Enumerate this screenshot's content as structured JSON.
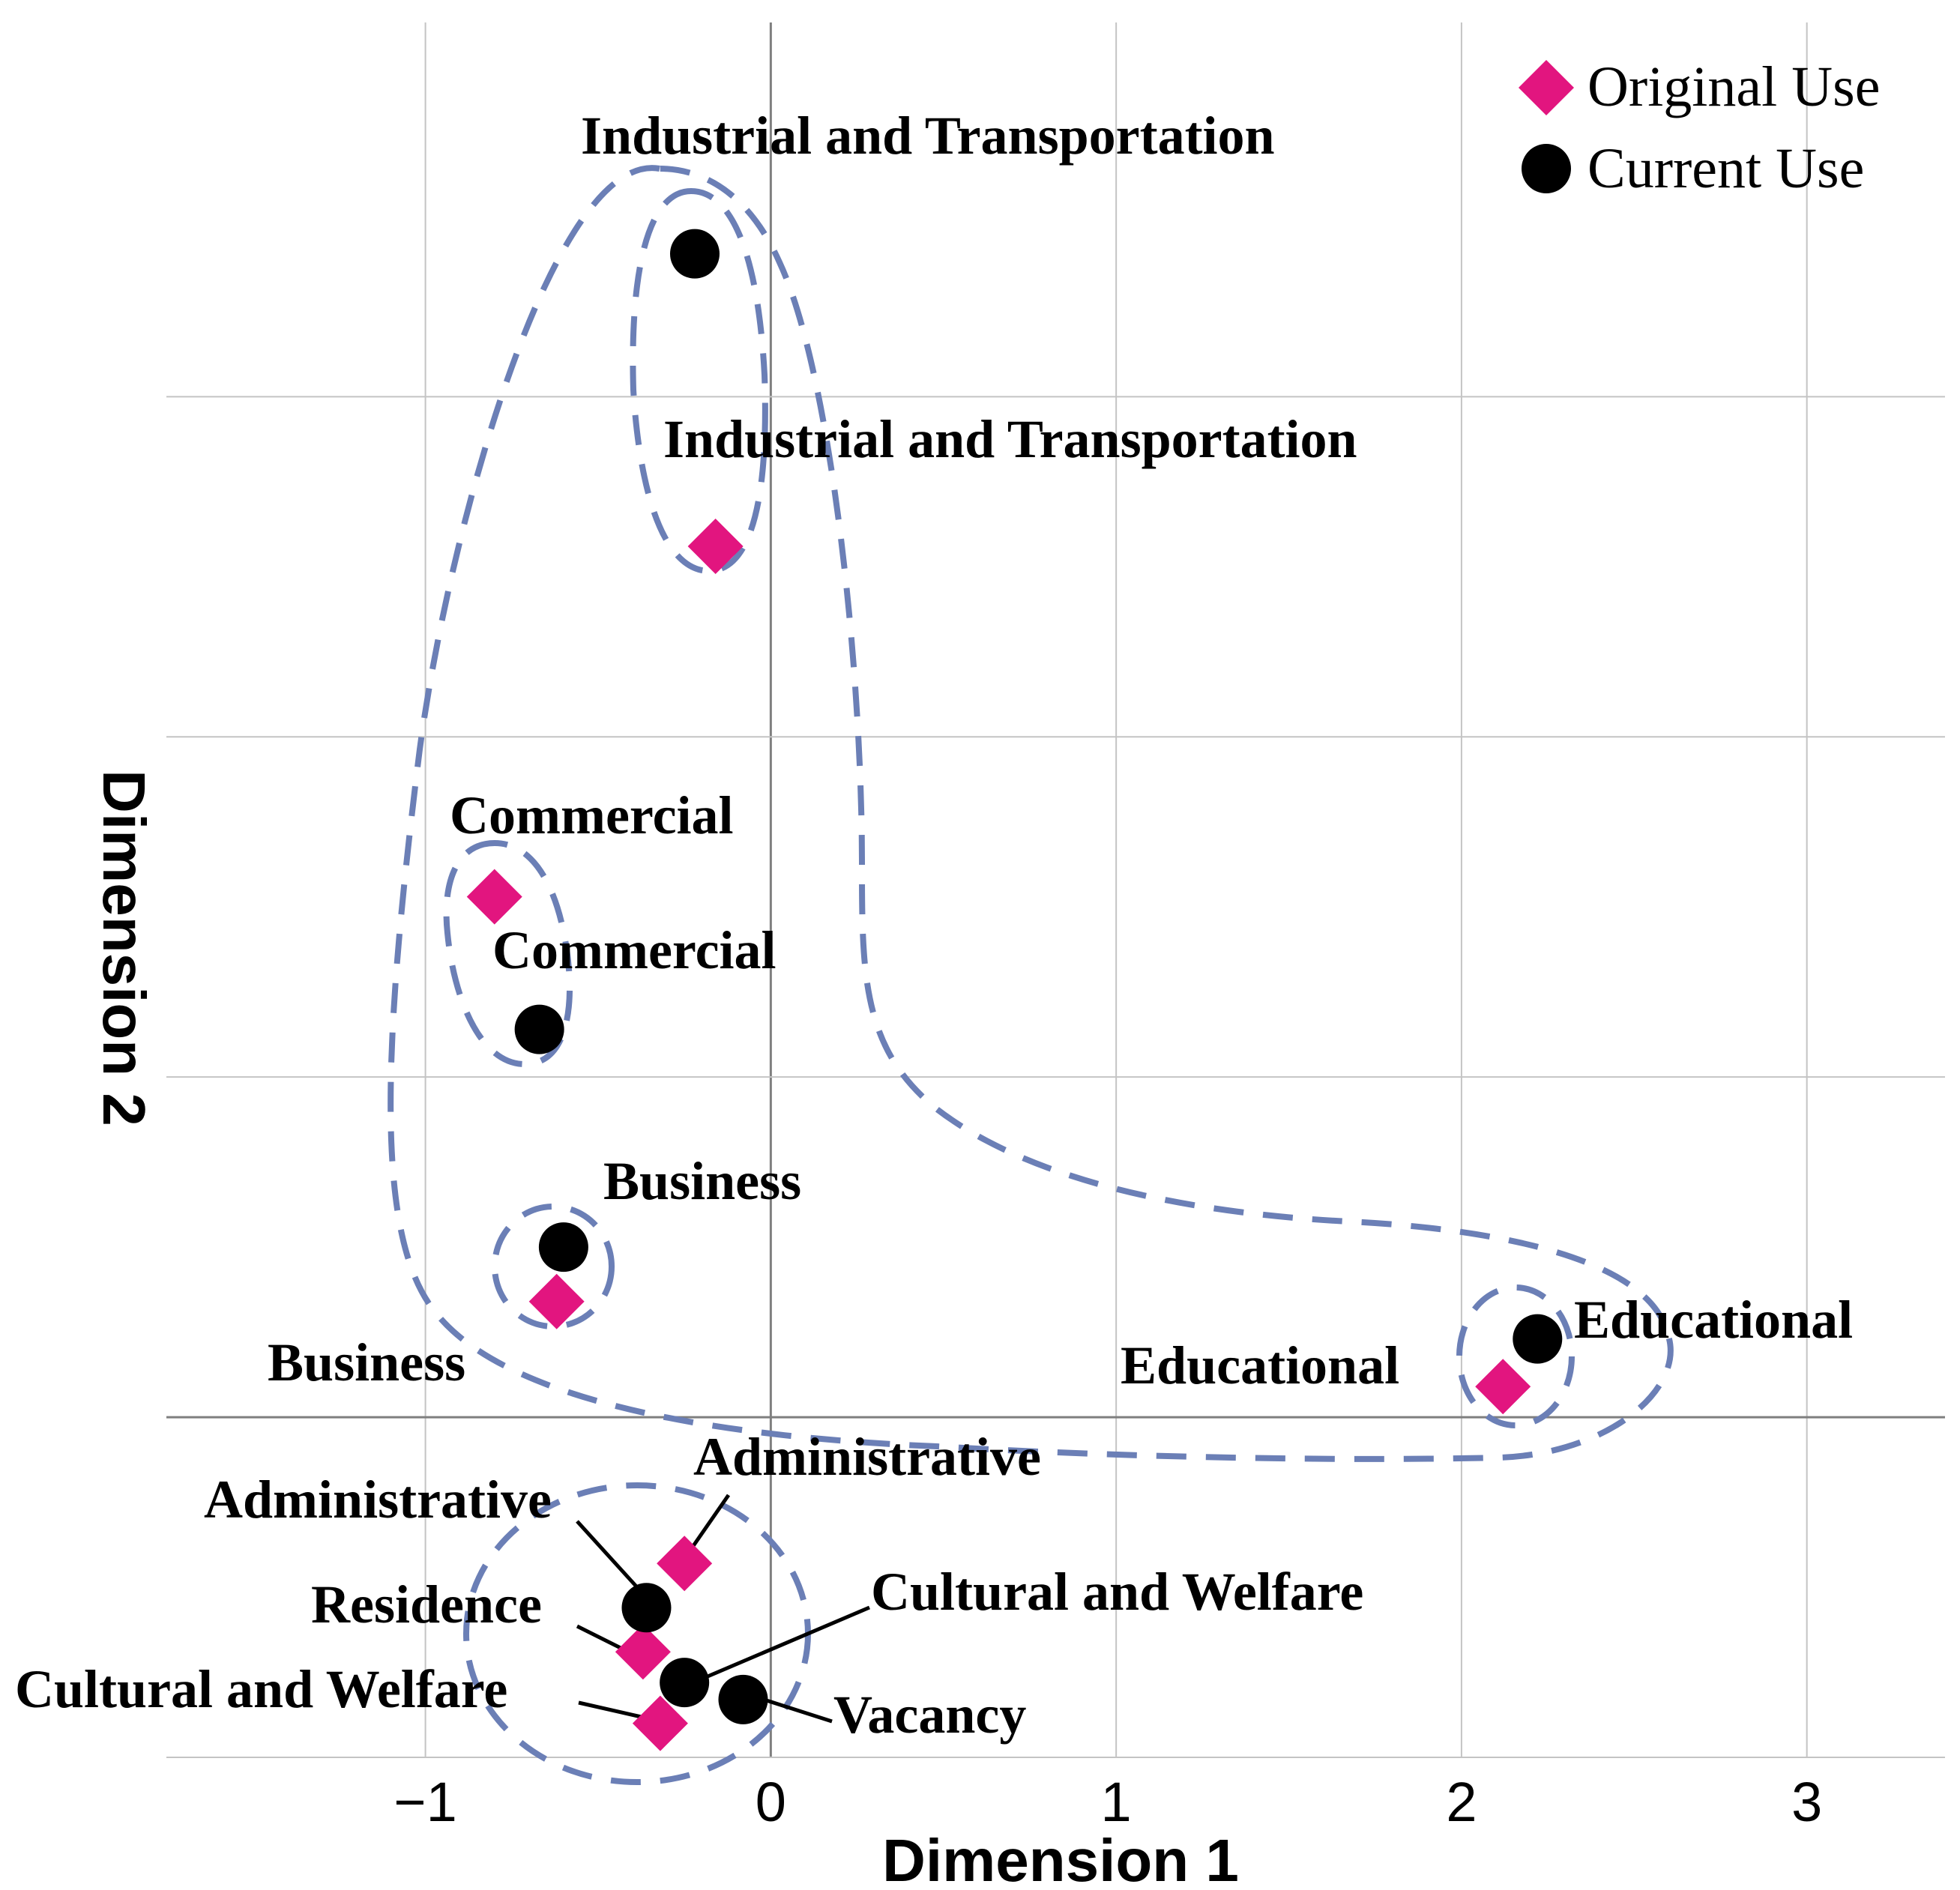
{
  "chart_data": {
    "type": "scatter",
    "title": "",
    "xlabel": "Dimension 1",
    "ylabel": "Dimension 2",
    "xlim": [
      -1.75,
      3.4
    ],
    "ylim": [
      -1.0,
      4.1
    ],
    "xticks": [
      "−1",
      "0",
      "1",
      "2",
      "3"
    ],
    "xtick_values": [
      -1,
      0,
      1,
      2,
      3
    ],
    "grid": true,
    "legend": [
      {
        "label": "Original Use",
        "marker": "diamond",
        "color": "#e2157f"
      },
      {
        "label": "Current Use",
        "marker": "circle",
        "color": "#000000"
      }
    ],
    "series": [
      {
        "name": "Original Use",
        "marker": "diamond",
        "color": "#e2157f",
        "points": [
          {
            "label": "Industrial and Transportation",
            "x": -0.16,
            "y": 2.56
          },
          {
            "label": "Commercial",
            "x": -0.8,
            "y": 1.53
          },
          {
            "label": "Business",
            "x": -0.62,
            "y": 0.34
          },
          {
            "label": "Educational",
            "x": 2.12,
            "y": 0.09
          },
          {
            "label": "Administrative",
            "x": -0.25,
            "y": -0.43
          },
          {
            "label": "Residence",
            "x": -0.37,
            "y": -0.69
          },
          {
            "label": "Cultural and Welfare",
            "x": -0.32,
            "y": -0.9
          }
        ]
      },
      {
        "name": "Current Use",
        "marker": "circle",
        "color": "#000000",
        "points": [
          {
            "label": "Industrial and Transportation",
            "x": -0.22,
            "y": 3.42
          },
          {
            "label": "Commercial",
            "x": -0.67,
            "y": 1.14
          },
          {
            "label": "Business",
            "x": -0.6,
            "y": 0.5
          },
          {
            "label": "Educational",
            "x": 2.22,
            "y": 0.23
          },
          {
            "label": "Administrative",
            "x": -0.36,
            "y": -0.56
          },
          {
            "label": "Cultural and Welfare",
            "x": -0.25,
            "y": -0.78
          },
          {
            "label": "Vacancy",
            "x": -0.08,
            "y": -0.83
          }
        ]
      }
    ]
  }
}
